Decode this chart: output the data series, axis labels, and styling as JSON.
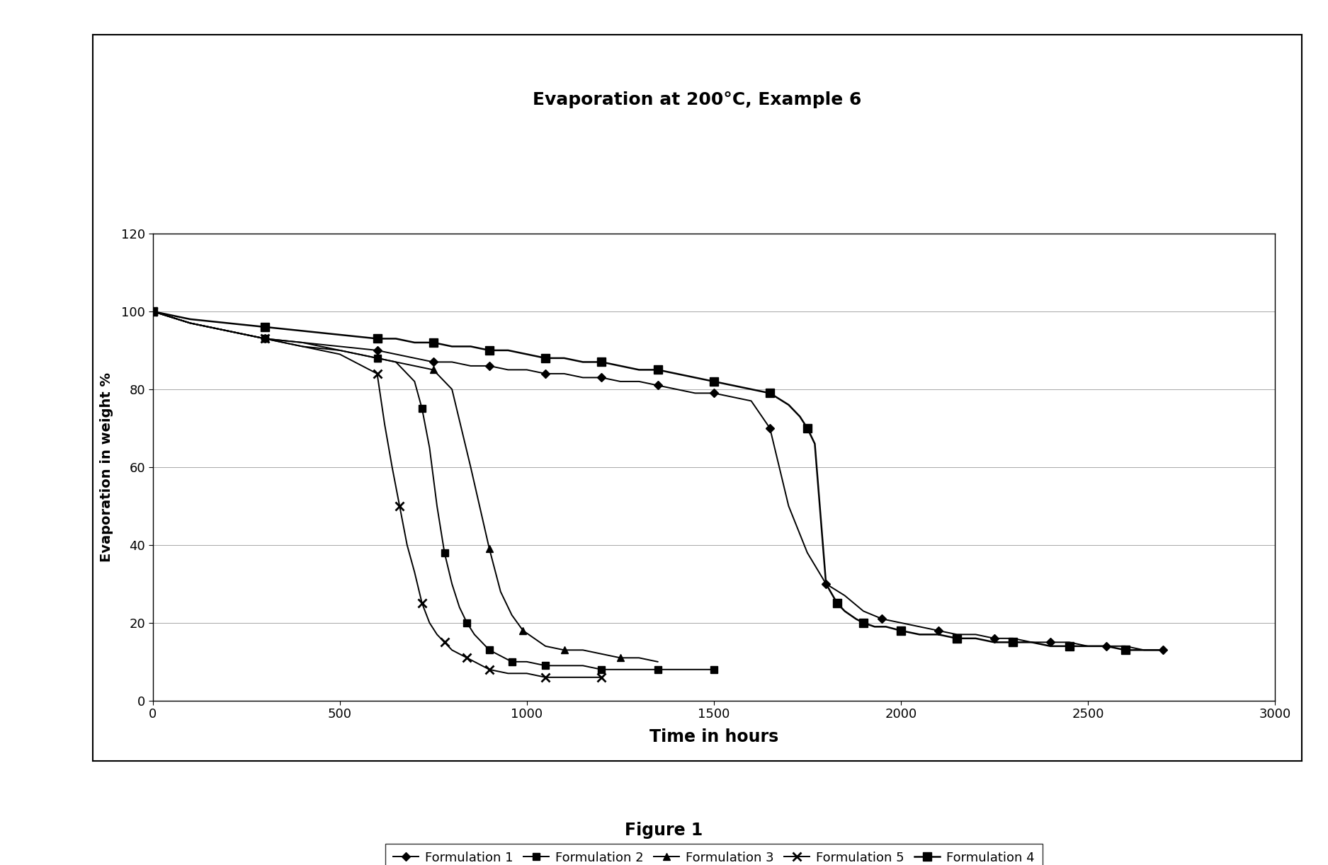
{
  "title": "Evaporation at 200°C, Example 6",
  "xlabel": "Time in hours",
  "ylabel": "Evaporation in weight %",
  "figure_caption": "Figure 1",
  "xlim": [
    0,
    3000
  ],
  "ylim": [
    0,
    120
  ],
  "xticks": [
    0,
    500,
    1000,
    1500,
    2000,
    2500,
    3000
  ],
  "yticks": [
    0,
    20,
    40,
    60,
    80,
    100,
    120
  ],
  "series": [
    {
      "label": "Formulation 1",
      "marker": "D",
      "markersize": 6,
      "color": "#000000",
      "linewidth": 1.4,
      "x": [
        0,
        100,
        200,
        300,
        400,
        500,
        600,
        650,
        700,
        750,
        800,
        850,
        900,
        950,
        1000,
        1050,
        1100,
        1150,
        1200,
        1250,
        1300,
        1350,
        1400,
        1450,
        1500,
        1550,
        1600,
        1650,
        1700,
        1750,
        1800,
        1850,
        1900,
        1950,
        2000,
        2050,
        2100,
        2150,
        2200,
        2250,
        2300,
        2350,
        2400,
        2450,
        2500,
        2550,
        2600,
        2650,
        2700
      ],
      "y": [
        100,
        97,
        95,
        93,
        92,
        91,
        90,
        89,
        88,
        87,
        87,
        86,
        86,
        85,
        85,
        84,
        84,
        83,
        83,
        82,
        82,
        81,
        80,
        79,
        79,
        78,
        77,
        70,
        50,
        38,
        30,
        27,
        23,
        21,
        20,
        19,
        18,
        17,
        17,
        16,
        16,
        15,
        15,
        15,
        14,
        14,
        14,
        13,
        13
      ]
    },
    {
      "label": "Formulation 2",
      "marker": "s",
      "markersize": 7,
      "color": "#000000",
      "linewidth": 1.4,
      "x": [
        0,
        100,
        200,
        300,
        400,
        500,
        600,
        650,
        700,
        720,
        740,
        760,
        780,
        800,
        820,
        840,
        860,
        880,
        900,
        920,
        940,
        960,
        980,
        1000,
        1050,
        1100,
        1150,
        1200,
        1250,
        1300,
        1350,
        1400,
        1450,
        1500
      ],
      "y": [
        100,
        97,
        95,
        93,
        91,
        90,
        88,
        87,
        82,
        75,
        65,
        50,
        38,
        30,
        24,
        20,
        17,
        15,
        13,
        12,
        11,
        10,
        10,
        10,
        9,
        9,
        9,
        8,
        8,
        8,
        8,
        8,
        8,
        8
      ]
    },
    {
      "label": "Formulation 3",
      "marker": "^",
      "markersize": 7,
      "color": "#000000",
      "linewidth": 1.4,
      "x": [
        0,
        100,
        200,
        300,
        400,
        500,
        600,
        650,
        700,
        750,
        800,
        850,
        900,
        930,
        960,
        990,
        1020,
        1050,
        1100,
        1150,
        1200,
        1250,
        1300,
        1350
      ],
      "y": [
        100,
        97,
        95,
        93,
        92,
        90,
        88,
        87,
        86,
        85,
        80,
        60,
        39,
        28,
        22,
        18,
        16,
        14,
        13,
        13,
        12,
        11,
        11,
        10
      ]
    },
    {
      "label": "Formulation 5",
      "marker": "x",
      "markersize": 8,
      "color": "#000000",
      "linewidth": 1.4,
      "x": [
        0,
        100,
        200,
        300,
        400,
        500,
        600,
        620,
        640,
        660,
        680,
        700,
        720,
        740,
        760,
        780,
        800,
        820,
        840,
        860,
        880,
        900,
        950,
        1000,
        1050,
        1100,
        1150,
        1200
      ],
      "y": [
        100,
        97,
        95,
        93,
        91,
        89,
        84,
        71,
        60,
        50,
        40,
        33,
        25,
        20,
        17,
        15,
        13,
        12,
        11,
        10,
        9,
        8,
        7,
        7,
        6,
        6,
        6,
        6
      ]
    },
    {
      "label": "Formulation 4",
      "marker": "s",
      "markersize": 9,
      "color": "#000000",
      "linewidth": 1.8,
      "x": [
        0,
        100,
        200,
        300,
        400,
        500,
        600,
        650,
        700,
        750,
        800,
        850,
        900,
        950,
        1000,
        1050,
        1100,
        1150,
        1200,
        1250,
        1300,
        1350,
        1400,
        1450,
        1500,
        1550,
        1600,
        1650,
        1700,
        1730,
        1750,
        1770,
        1800,
        1830,
        1850,
        1880,
        1900,
        1930,
        1960,
        2000,
        2050,
        2100,
        2150,
        2200,
        2250,
        2300,
        2350,
        2400,
        2450,
        2500,
        2550,
        2600,
        2650,
        2700
      ],
      "y": [
        100,
        98,
        97,
        96,
        95,
        94,
        93,
        93,
        92,
        92,
        91,
        91,
        90,
        90,
        89,
        88,
        88,
        87,
        87,
        86,
        85,
        85,
        84,
        83,
        82,
        81,
        80,
        79,
        76,
        73,
        70,
        66,
        30,
        25,
        23,
        21,
        20,
        19,
        19,
        18,
        17,
        17,
        16,
        16,
        15,
        15,
        15,
        14,
        14,
        14,
        14,
        13,
        13,
        13
      ]
    }
  ]
}
